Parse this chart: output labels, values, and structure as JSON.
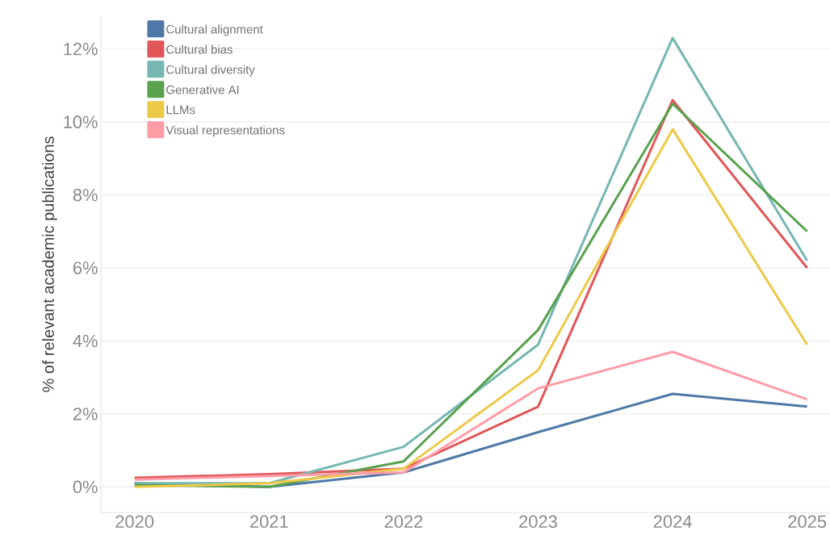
{
  "chart_data": {
    "type": "line",
    "ylabel": "% of relevant academic publications",
    "x": [
      2020,
      2021,
      2022,
      2023,
      2024,
      2025
    ],
    "series": [
      {
        "name": "Cultural alignment",
        "color": "#4e79a7",
        "values": [
          0.1,
          0.0,
          0.4,
          1.5,
          2.55,
          2.2
        ]
      },
      {
        "name": "Cultural bias",
        "color": "#e15759",
        "values": [
          0.25,
          0.35,
          0.5,
          2.2,
          10.6,
          6.0
        ]
      },
      {
        "name": "Cultural diversity",
        "color": "#76b7b2",
        "values": [
          0.1,
          0.1,
          1.1,
          3.9,
          12.3,
          6.2
        ]
      },
      {
        "name": "Generative AI",
        "color": "#59a14f",
        "values": [
          0.05,
          0.0,
          0.7,
          4.3,
          10.5,
          7.0
        ]
      },
      {
        "name": "LLMs",
        "color": "#edc948",
        "values": [
          0.0,
          0.1,
          0.5,
          3.2,
          9.8,
          3.9
        ]
      },
      {
        "name": "Visual representations",
        "color": "#ff9da7",
        "values": [
          0.2,
          0.3,
          0.4,
          2.7,
          3.7,
          2.4
        ]
      }
    ],
    "xlim": [
      2019.75,
      2025.17
    ],
    "ylim": [
      -0.7,
      12.9
    ],
    "xticks": [
      2020,
      2021,
      2022,
      2023,
      2024,
      2025
    ],
    "yticks": [
      {
        "value": 0,
        "label": "0%"
      },
      {
        "value": 2,
        "label": "2%"
      },
      {
        "value": 4,
        "label": "4%"
      },
      {
        "value": 6,
        "label": "6%"
      },
      {
        "value": 8,
        "label": "8%"
      },
      {
        "value": 10,
        "label": "10%"
      },
      {
        "value": 12,
        "label": "12%"
      }
    ],
    "grid": "y",
    "legend": "top left",
    "marker": "none",
    "line_style": "solid"
  }
}
